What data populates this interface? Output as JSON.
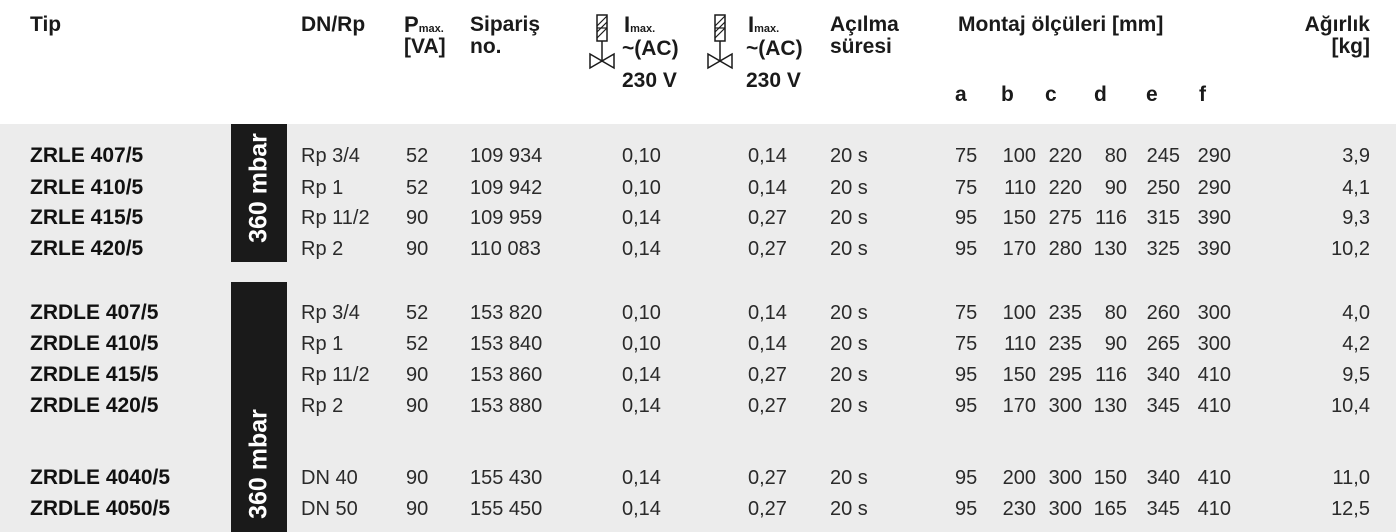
{
  "header": {
    "tip": "Tip",
    "dn": "DN/Rp",
    "p_main": "P",
    "p_sub": "max.",
    "p_unit": "[VA]",
    "siparis_1": "Sipariş",
    "siparis_2": "no.",
    "i1_main": "I",
    "i1_sub": "max.",
    "i1_ac": "~(AC)",
    "i1_v": "230 V",
    "i2_main": "I",
    "i2_sub": "max.",
    "i2_ac": "~(AC)",
    "i2_v": "230 V",
    "acilma_1": "Açılma",
    "acilma_2": "süresi",
    "montaj": "Montaj ölçüleri [mm]",
    "col_a": "a",
    "col_b": "b",
    "col_c": "c",
    "col_d": "d",
    "col_e": "e",
    "col_f": "f",
    "agirlik_1": "Ağırlık",
    "agirlik_2": "[kg]"
  },
  "group_labels": [
    "360 mbar",
    "360 mbar"
  ],
  "colors": {
    "label_bg": "#1a1a1a",
    "band_bg": "#ececec"
  },
  "rows": [
    {
      "tip": "ZRLE 407/5",
      "dn": "Rp 3/4",
      "p": "52",
      "no": "109 934",
      "i1": "0,10",
      "i2": "0,14",
      "t": "20 s",
      "a": "75",
      "b": "100",
      "c": "220",
      "d": "80",
      "e": "245",
      "f": "290",
      "kg": "3,9"
    },
    {
      "tip": "ZRLE 410/5",
      "dn": "Rp 1",
      "p": "52",
      "no": "109 942",
      "i1": "0,10",
      "i2": "0,14",
      "t": "20 s",
      "a": "75",
      "b": "110",
      "c": "220",
      "d": "90",
      "e": "250",
      "f": "290",
      "kg": "4,1"
    },
    {
      "tip": "ZRLE 415/5",
      "dn": "Rp 11/2",
      "p": "90",
      "no": "109 959",
      "i1": "0,14",
      "i2": "0,27",
      "t": "20 s",
      "a": "95",
      "b": "150",
      "c": "275",
      "d": "116",
      "e": "315",
      "f": "390",
      "kg": "9,3"
    },
    {
      "tip": "ZRLE 420/5",
      "dn": "Rp 2",
      "p": "90",
      "no": "110 083",
      "i1": "0,14",
      "i2": "0,27",
      "t": "20 s",
      "a": "95",
      "b": "170",
      "c": "280",
      "d": "130",
      "e": "325",
      "f": "390",
      "kg": "10,2"
    },
    {
      "tip": "ZRDLE 407/5",
      "dn": "Rp 3/4",
      "p": "52",
      "no": "153 820",
      "i1": "0,10",
      "i2": "0,14",
      "t": "20 s",
      "a": "75",
      "b": "100",
      "c": "235",
      "d": "80",
      "e": "260",
      "f": "300",
      "kg": "4,0"
    },
    {
      "tip": "ZRDLE 410/5",
      "dn": "Rp 1",
      "p": "52",
      "no": "153 840",
      "i1": "0,10",
      "i2": "0,14",
      "t": "20 s",
      "a": "75",
      "b": "110",
      "c": "235",
      "d": "90",
      "e": "265",
      "f": "300",
      "kg": "4,2"
    },
    {
      "tip": "ZRDLE 415/5",
      "dn": "Rp 11/2",
      "p": "90",
      "no": "153 860",
      "i1": "0,14",
      "i2": "0,27",
      "t": "20 s",
      "a": "95",
      "b": "150",
      "c": "295",
      "d": "116",
      "e": "340",
      "f": "410",
      "kg": "9,5"
    },
    {
      "tip": "ZRDLE 420/5",
      "dn": "Rp 2",
      "p": "90",
      "no": "153 880",
      "i1": "0,14",
      "i2": "0,27",
      "t": "20 s",
      "a": "95",
      "b": "170",
      "c": "300",
      "d": "130",
      "e": "345",
      "f": "410",
      "kg": "10,4"
    },
    {
      "tip": "ZRDLE 4040/5",
      "dn": "DN 40",
      "p": "90",
      "no": "155 430",
      "i1": "0,14",
      "i2": "0,27",
      "t": "20 s",
      "a": "95",
      "b": "200",
      "c": "300",
      "d": "150",
      "e": "340",
      "f": "410",
      "kg": "11,0"
    },
    {
      "tip": "ZRDLE 4050/5",
      "dn": "DN 50",
      "p": "90",
      "no": "155 450",
      "i1": "0,14",
      "i2": "0,27",
      "t": "20 s",
      "a": "95",
      "b": "230",
      "c": "300",
      "d": "165",
      "e": "345",
      "f": "410",
      "kg": "12,5"
    }
  ]
}
